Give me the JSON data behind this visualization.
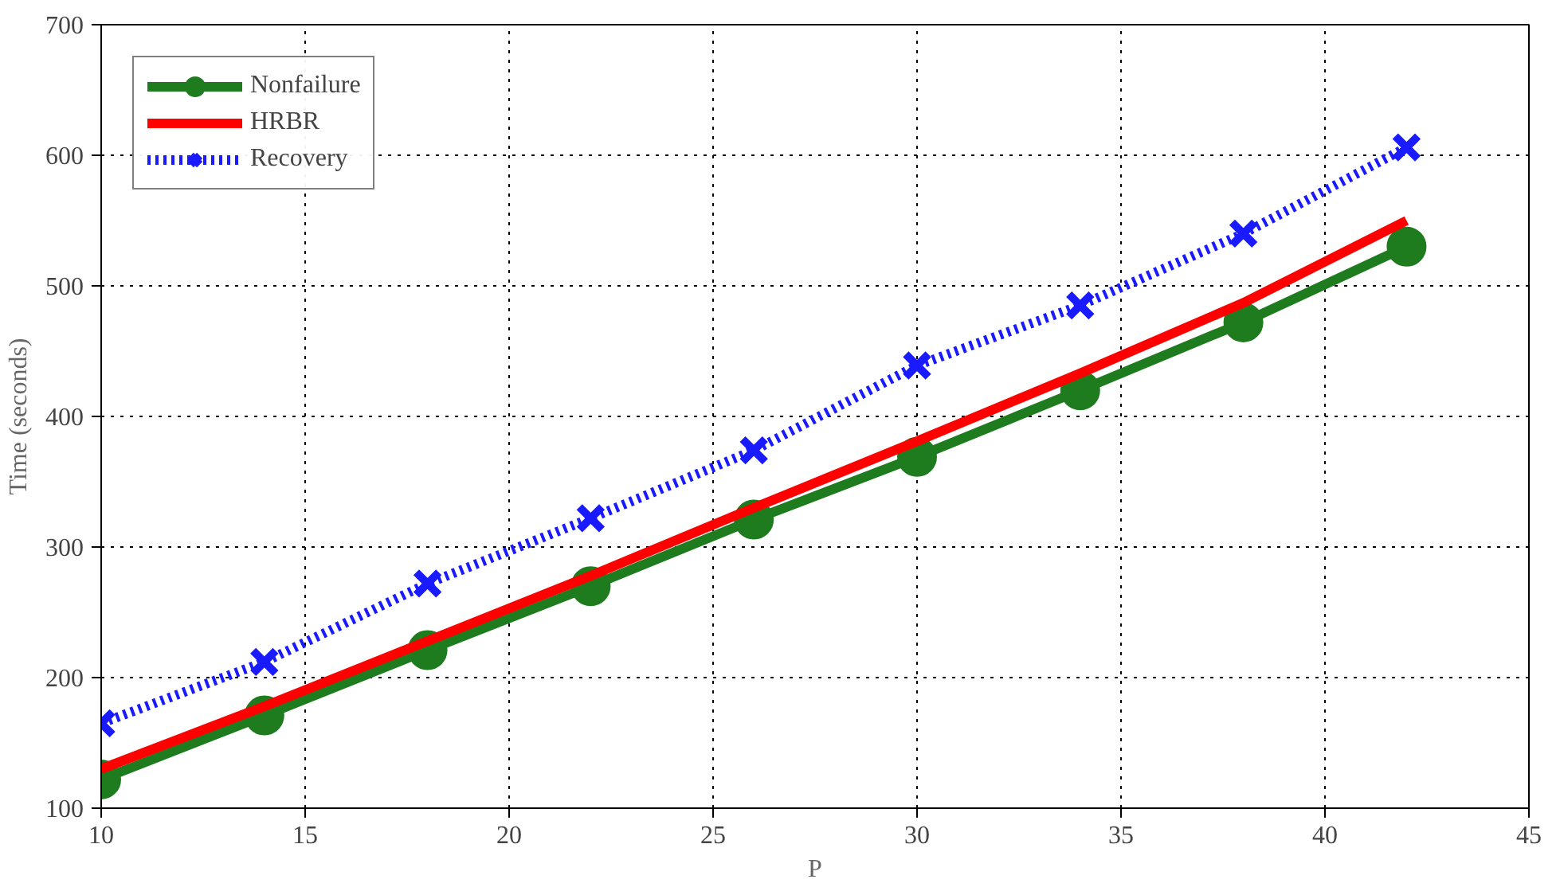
{
  "chart_data": {
    "type": "line",
    "xlabel": "P",
    "ylabel": "Time (seconds)",
    "x": [
      10,
      14,
      18,
      22,
      26,
      30,
      34,
      38,
      42
    ],
    "series": [
      {
        "name": "Nonfailure",
        "color": "#1e7b1e",
        "values": [
          122,
          171,
          221,
          270,
          321,
          369,
          420,
          472,
          530
        ],
        "marker": "circle",
        "line_style": "solid"
      },
      {
        "name": "HRBR",
        "color": "#ff0000",
        "values": [
          130,
          178,
          228,
          278,
          330,
          381,
          433,
          487,
          550
        ],
        "marker": "none",
        "line_style": "solid"
      },
      {
        "name": "Recovery",
        "color": "#1a1aff",
        "values": [
          165,
          212,
          272,
          322,
          374,
          439,
          485,
          540,
          606
        ],
        "marker": "cross",
        "line_style": "dotted"
      }
    ],
    "xlim": [
      10,
      45
    ],
    "ylim": [
      100,
      700
    ],
    "xticks": [
      10,
      15,
      20,
      25,
      30,
      35,
      40,
      45
    ],
    "yticks": [
      100,
      200,
      300,
      400,
      500,
      600,
      700
    ],
    "grid": true,
    "legend": "top left"
  }
}
